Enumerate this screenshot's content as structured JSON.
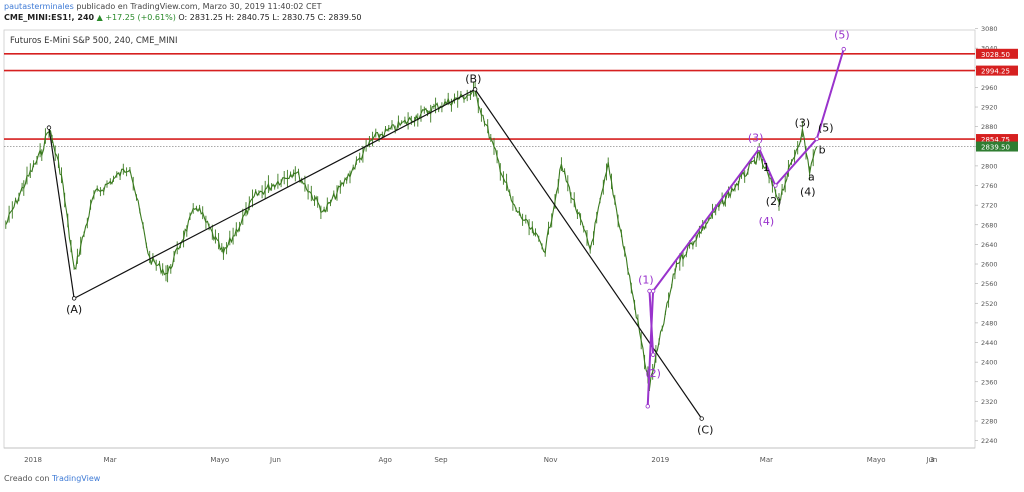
{
  "header": {
    "author": "pautasterminales",
    "published": "publicado en TradingView.com, Marzo 30, 2019 11:40:02 CET",
    "symbol": "CME_MINI:ES1!, 240",
    "change_arrow": "▲",
    "change": "+17.25 (+0.61%)",
    "ohlc": "O: 2831.25  H: 2840.75  L: 2830.75  C: 2839.50"
  },
  "footer": {
    "created_with": "Creado con",
    "brand": "TradingView"
  },
  "colors": {
    "candles": "#3a7a1f",
    "wave_abc": "#111111",
    "wave_impulse": "#9933cc",
    "resistance": "#d62020",
    "current_tag": "#2f7d32",
    "axis_text": "#555555"
  },
  "chart_data": {
    "type": "line",
    "title": "Futuros E-Mini S&P 500, 240, CME_MINI",
    "xlabel": "",
    "ylabel": "",
    "ylim": [
      2225,
      3077
    ],
    "x_ticks": [
      "2018",
      "Mar",
      "Mayo",
      "Jun",
      "Ago",
      "Sep",
      "Nov",
      "2019",
      "Mar",
      "Mayo",
      "Jun",
      "3"
    ],
    "y_ticks": [
      2240,
      2280,
      2320,
      2360,
      2400,
      2440,
      2480,
      2520,
      2560,
      2600,
      2640,
      2680,
      2720,
      2760,
      2800,
      2840,
      2880,
      2920,
      2960,
      3000,
      3040,
      3080
    ],
    "price_series": {
      "name": "",
      "x": [
        "2018-01-02",
        "2018-01-12",
        "2018-01-22",
        "2018-01-26",
        "2018-02-02",
        "2018-02-09",
        "2018-02-20",
        "2018-03-12",
        "2018-03-23",
        "2018-04-02",
        "2018-04-18",
        "2018-05-03",
        "2018-05-21",
        "2018-06-12",
        "2018-06-28",
        "2018-07-25",
        "2018-08-29",
        "2018-09-20",
        "2018-10-11",
        "2018-10-29",
        "2018-11-07",
        "2018-11-23",
        "2018-12-03",
        "2018-12-14",
        "2018-12-26",
        "2019-01-10",
        "2019-01-30",
        "2019-02-25",
        "2019-03-08",
        "2019-03-21",
        "2019-03-25",
        "2019-03-29"
      ],
      "values": [
        2680,
        2760,
        2830,
        2878,
        2780,
        2585,
        2740,
        2800,
        2610,
        2580,
        2720,
        2620,
        2740,
        2790,
        2705,
        2855,
        2920,
        2950,
        2720,
        2630,
        2800,
        2630,
        2800,
        2590,
        2350,
        2600,
        2700,
        2820,
        2730,
        2870,
        2790,
        2839.5
      ]
    },
    "resistance_levels": [
      {
        "label": "3028.50",
        "value": 3028.5
      },
      {
        "label": "2994.25",
        "value": 2994.25
      },
      {
        "label": "2854.75",
        "value": 2854.75
      }
    ],
    "current_price": {
      "label": "2839.50",
      "value": 2839.5
    },
    "wave_abc": {
      "x": [
        "2018-01-26",
        "2018-02-09",
        "2018-09-20",
        "2019-01-24"
      ],
      "values": [
        2878,
        2530,
        2956,
        2285
      ]
    },
    "wave_impulse": {
      "x": [
        "2018-12-25",
        "2018-12-28",
        "2019-02-25",
        "2019-03-06",
        "2019-03-29",
        "2019-04-13"
      ],
      "values": [
        2310,
        2545,
        2835,
        2760,
        2855,
        3038
      ]
    },
    "small_wave": {
      "x": [
        "2018-12-26",
        "2018-12-28"
      ],
      "values": [
        2545,
        2415
      ]
    },
    "wave_labels": [
      {
        "text": "(A)",
        "x": "2018-02-09",
        "y": 2500,
        "group": "abc"
      },
      {
        "text": "(B)",
        "x": "2018-09-19",
        "y": 2970,
        "group": "abc"
      },
      {
        "text": "(C)",
        "x": "2019-01-26",
        "y": 2255,
        "group": "abc"
      },
      {
        "text": "(1)",
        "x": "2018-12-24",
        "y": 2560,
        "group": "impulse"
      },
      {
        "text": "(2)",
        "x": "2018-12-28",
        "y": 2370,
        "group": "impulse"
      },
      {
        "text": "(3)",
        "x": "2019-02-23",
        "y": 2850,
        "group": "impulse"
      },
      {
        "text": "(4)",
        "x": "2019-03-01",
        "y": 2680,
        "group": "impulse"
      },
      {
        "text": "(5)",
        "x": "2019-04-12",
        "y": 3060,
        "group": "impulse"
      },
      {
        "text": "(3)",
        "x": "2019-03-21",
        "y": 2880,
        "group": "abc"
      },
      {
        "text": "(5)",
        "x": "2019-04-03",
        "y": 2870,
        "group": "abc"
      },
      {
        "text": "1",
        "x": "2019-03-01",
        "y": 2790,
        "group": "abc"
      },
      {
        "text": "(2)",
        "x": "2019-03-05",
        "y": 2720,
        "group": "abc"
      },
      {
        "text": "(4)",
        "x": "2019-03-24",
        "y": 2740,
        "group": "abc"
      },
      {
        "text": "a",
        "x": "2019-03-26",
        "y": 2770,
        "group": "abc"
      },
      {
        "text": "b",
        "x": "2019-04-01",
        "y": 2825,
        "group": "abc"
      }
    ],
    "grid": false
  }
}
